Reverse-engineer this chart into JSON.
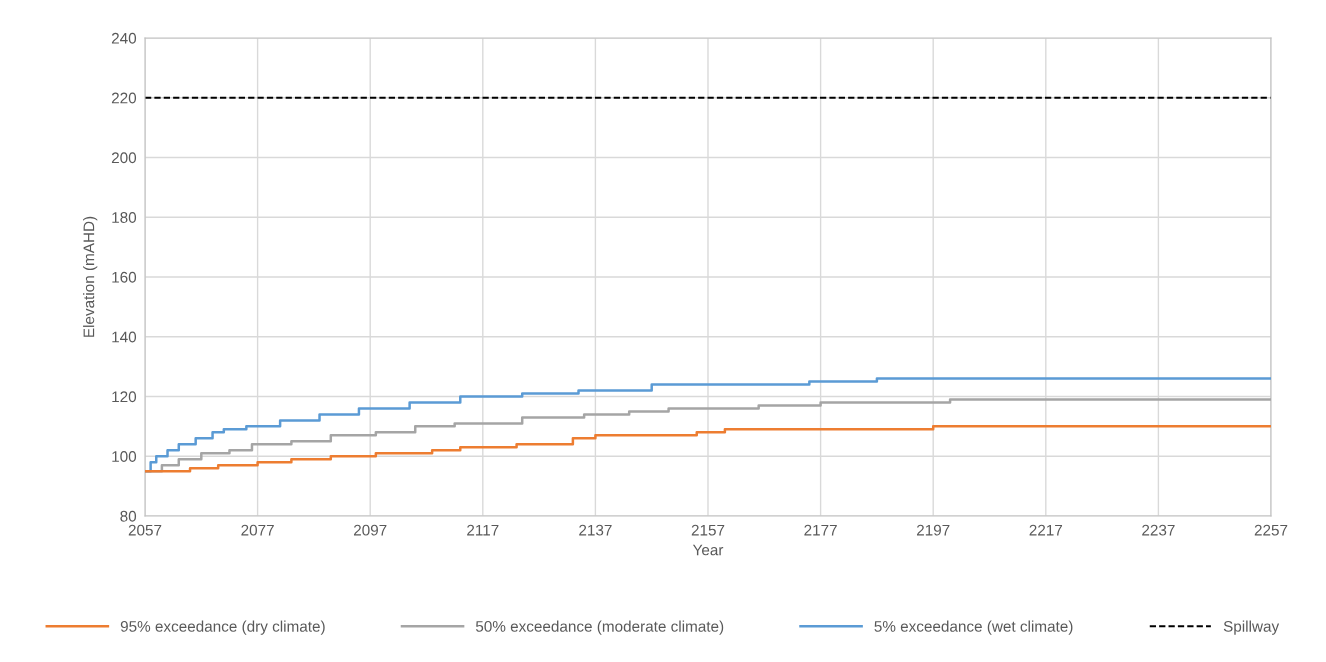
{
  "chart_data": {
    "type": "step",
    "xlabel": "Year",
    "ylabel": "Elevation (mAHD)",
    "xlim": [
      2057,
      2257
    ],
    "xticks": [
      2057,
      2077,
      2097,
      2117,
      2137,
      2157,
      2177,
      2197,
      2217,
      2237,
      2257
    ],
    "ylim": [
      80,
      240
    ],
    "yticks": [
      80,
      100,
      120,
      140,
      160,
      180,
      200,
      220,
      240
    ],
    "grid": true,
    "legend": "bottom",
    "line_style": "solid",
    "marker": "none",
    "series": [
      {
        "name": "95% exceedance (dry climate)",
        "color": "#ed7d31",
        "x": [
          2057,
          2065,
          2070,
          2077,
          2083,
          2090,
          2098,
          2108,
          2113,
          2123,
          2133,
          2137,
          2155,
          2160,
          2197,
          2257
        ],
        "values": [
          95,
          96,
          97,
          98,
          99,
          100,
          101,
          102,
          103,
          104,
          106,
          107,
          108,
          109,
          110,
          110
        ]
      },
      {
        "name": "50% exceedance (moderate climate)",
        "color": "#a5a5a5",
        "x": [
          2057,
          2060,
          2063,
          2067,
          2072,
          2076,
          2083,
          2090,
          2098,
          2105,
          2112,
          2124,
          2135,
          2143,
          2150,
          2166,
          2177,
          2200,
          2257
        ],
        "values": [
          95,
          97,
          99,
          101,
          102,
          104,
          105,
          107,
          108,
          110,
          111,
          113,
          114,
          115,
          116,
          117,
          118,
          119,
          119
        ]
      },
      {
        "name": "5% exceedance (wet climate)",
        "color": "#5b9bd5",
        "x": [
          2057,
          2058,
          2059,
          2061,
          2063,
          2066,
          2069,
          2071,
          2075,
          2081,
          2088,
          2095,
          2104,
          2113,
          2124,
          2134,
          2147,
          2175,
          2187,
          2257
        ],
        "values": [
          95,
          98,
          100,
          102,
          104,
          106,
          108,
          109,
          110,
          112,
          114,
          116,
          118,
          120,
          121,
          122,
          124,
          125,
          126,
          126
        ]
      }
    ],
    "ref_lines": [
      {
        "axis": "y",
        "value": 220,
        "label": "Spillway",
        "color": "#000000",
        "line_style": "dashed"
      }
    ]
  }
}
